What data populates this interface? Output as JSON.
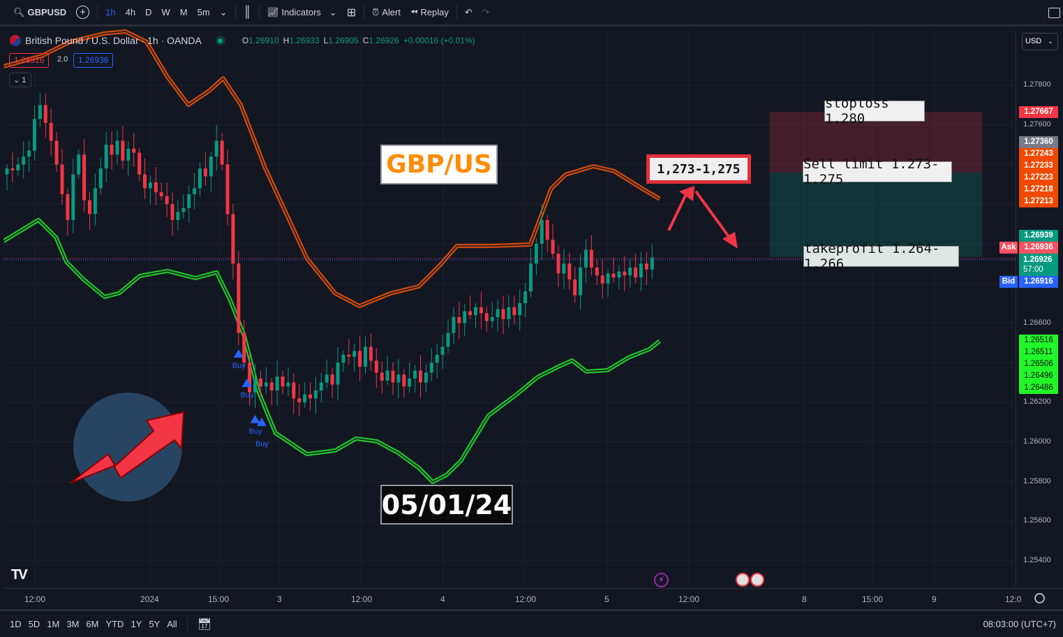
{
  "toolbar": {
    "symbol": "GBPUSD",
    "intervals": [
      "1h",
      "4h",
      "D",
      "W",
      "M",
      "5m"
    ],
    "indicators": "Indicators",
    "alert": "Alert",
    "replay": "Replay"
  },
  "legend": {
    "title": "British Pound / U.S. Dollar · 1h · OANDA",
    "o_label": "O",
    "o": "1.26910",
    "h_label": "H",
    "h": "1.26933",
    "l_label": "L",
    "l": "1.26905",
    "c_label": "C",
    "c": "1.26926",
    "change": "+0.00016 (+0.01%)",
    "bid_box": "1.26916",
    "spread": "2.0",
    "ask_box": "1.26936",
    "collapse": "1"
  },
  "currency": "USD",
  "price_axis": {
    "ticks": [
      "1.27800",
      "1.27600",
      "1.26600",
      "1.26200",
      "1.26000",
      "1.25800",
      "1.25600",
      "1.25400"
    ],
    "tags": {
      "stoploss": "1.27667",
      "gray": "1.27360",
      "orange": [
        "1.27243",
        "1.27233",
        "1.27223",
        "1.27218",
        "1.27213"
      ],
      "teal_top": "1.26939",
      "ask_label": "Ask",
      "ask": "1.26936",
      "last": "1.26926",
      "countdown": "57:00",
      "bid_label": "Bid",
      "bid": "1.26916",
      "green": [
        "1.26516",
        "1.26511",
        "1.26506",
        "1.26496",
        "1.26486"
      ]
    }
  },
  "time_axis": [
    "12:00",
    "2024",
    "15:00",
    "3",
    "12:00",
    "4",
    "12:00",
    "5",
    "12:00",
    "8",
    "15:00",
    "9",
    "12:0"
  ],
  "ranges": [
    "1D",
    "5D",
    "1M",
    "3M",
    "6M",
    "YTD",
    "1Y",
    "5Y",
    "All"
  ],
  "clock": "08:03:00 (UTC+7)",
  "annotations": {
    "pair": "GBP/US",
    "zone": "1,273-1,275",
    "stoploss": "stoploss 1.280",
    "sell_limit": "Sell limit 1.273-1.275",
    "takeprofit": "takeprofit 1.264-1,266",
    "date": "05/01/24",
    "buy": "Buy"
  },
  "colors": {
    "up": "#089981",
    "down": "#f23645",
    "upper_band": "#e8500a",
    "lower_band": "#22d62a",
    "accent": "#2962ff"
  },
  "chart_data": {
    "type": "candlestick",
    "ylim": [
      1.2535,
      1.2815
    ],
    "closes": [
      1.2738,
      1.2737,
      1.274,
      1.2744,
      1.2747,
      1.2763,
      1.277,
      1.2761,
      1.2752,
      1.274,
      1.2725,
      1.2712,
      1.2735,
      1.2745,
      1.2722,
      1.2715,
      1.2728,
      1.2738,
      1.275,
      1.2745,
      1.2752,
      1.2742,
      1.2748,
      1.2746,
      1.2735,
      1.2728,
      1.2731,
      1.2726,
      1.2724,
      1.272,
      1.2712,
      1.2716,
      1.2718,
      1.2725,
      1.2728,
      1.2738,
      1.2734,
      1.2744,
      1.2752,
      1.274,
      1.2715,
      1.269,
      1.2655,
      1.264,
      1.2625,
      1.2632,
      1.2628,
      1.263,
      1.2626,
      1.2633,
      1.2628,
      1.263,
      1.2622,
      1.262,
      1.2624,
      1.2622,
      1.2626,
      1.263,
      1.2634,
      1.2629,
      1.264,
      1.2644,
      1.2643,
      1.2646,
      1.2638,
      1.2648,
      1.2641,
      1.2635,
      1.2631,
      1.2636,
      1.263,
      1.2634,
      1.2628,
      1.2632,
      1.2636,
      1.263,
      1.2635,
      1.264,
      1.2644,
      1.2648,
      1.2655,
      1.2663,
      1.266,
      1.2666,
      1.2664,
      1.2668,
      1.2665,
      1.2661,
      1.2663,
      1.2667,
      1.2662,
      1.2668,
      1.2664,
      1.267,
      1.2676,
      1.269,
      1.27,
      1.2712,
      1.2702,
      1.2695,
      1.2685,
      1.269,
      1.2682,
      1.2674,
      1.2688,
      1.2697,
      1.2688,
      1.2684,
      1.268,
      1.2685,
      1.2683,
      1.2686,
      1.2684,
      1.2688,
      1.2683,
      1.269,
      1.2687,
      1.2693
    ],
    "upper_band": [
      [
        -0.6,
        1.27895
      ],
      [
        6.3,
        1.27948
      ],
      [
        11.4,
        1.28019
      ],
      [
        17.7,
        1.28061
      ],
      [
        21.5,
        1.28071
      ],
      [
        25.3,
        1.28019
      ],
      [
        29.1,
        1.27842
      ],
      [
        32.9,
        1.27701
      ],
      [
        36.7,
        1.27772
      ],
      [
        39.2,
        1.27835
      ],
      [
        42.4,
        1.27701
      ],
      [
        46.8,
        1.27384
      ],
      [
        54.4,
        1.26926
      ],
      [
        59.5,
        1.2675
      ],
      [
        63.9,
        1.26686
      ],
      [
        69.6,
        1.2675
      ],
      [
        74.7,
        1.26785
      ],
      [
        78.5,
        1.26891
      ],
      [
        81.6,
        1.26989
      ],
      [
        87.3,
        1.26989
      ],
      [
        94.9,
        1.26996
      ],
      [
        98.7,
        1.27278
      ],
      [
        101.3,
        1.27349
      ],
      [
        106.3,
        1.27391
      ],
      [
        110.1,
        1.27367
      ],
      [
        115.2,
        1.27278
      ],
      [
        118.4,
        1.27226
      ]
    ],
    "lower_band": [
      [
        -0.6,
        1.27014
      ],
      [
        5.7,
        1.2712
      ],
      [
        8.9,
        1.27032
      ],
      [
        10.8,
        1.26908
      ],
      [
        13.9,
        1.2682
      ],
      [
        17.7,
        1.26732
      ],
      [
        20.3,
        1.2675
      ],
      [
        24.1,
        1.26838
      ],
      [
        29.1,
        1.26863
      ],
      [
        34.2,
        1.26827
      ],
      [
        38,
        1.26856
      ],
      [
        40.5,
        1.26715
      ],
      [
        43,
        1.26538
      ],
      [
        45.6,
        1.26256
      ],
      [
        48.7,
        1.26045
      ],
      [
        54.4,
        1.25939
      ],
      [
        59.5,
        1.25957
      ],
      [
        63.3,
        1.26017
      ],
      [
        67.1,
        1.26003
      ],
      [
        70.9,
        1.25946
      ],
      [
        74.7,
        1.25869
      ],
      [
        77.2,
        1.25798
      ],
      [
        79.7,
        1.25833
      ],
      [
        82.3,
        1.25904
      ],
      [
        87.3,
        1.26133
      ],
      [
        92.4,
        1.26239
      ],
      [
        96.2,
        1.26327
      ],
      [
        100,
        1.2638
      ],
      [
        102.5,
        1.26411
      ],
      [
        105.1,
        1.26355
      ],
      [
        108.9,
        1.26362
      ],
      [
        112.7,
        1.26426
      ],
      [
        116.5,
        1.26468
      ],
      [
        118.4,
        1.2651
      ]
    ],
    "buy_signals": [
      42,
      43.5,
      45,
      46.2
    ]
  }
}
